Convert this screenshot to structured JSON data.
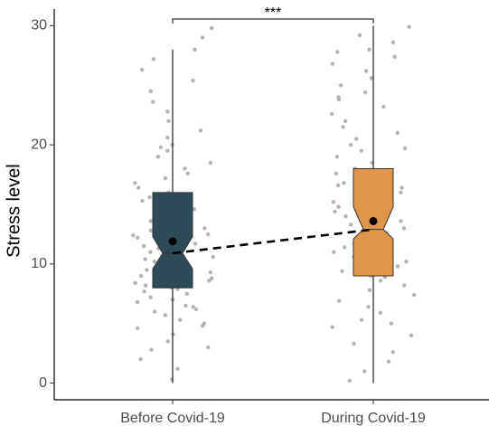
{
  "chart_data": {
    "type": "box",
    "y_label": "Stress level",
    "categories": [
      "Before Covid-19",
      "During Covid-19"
    ],
    "ylim": [
      -1.4,
      31.4
    ],
    "yticks": [
      0,
      10,
      20,
      30
    ],
    "point_color": "#b3b3b3",
    "significance": {
      "label": "***"
    },
    "boxes": [
      {
        "color": "#2f4b58",
        "whisker_low": 0,
        "q1": 8,
        "median": 10.9,
        "q3": 16,
        "whisker_high": 28,
        "notch": [
          9.6,
          12.3
        ],
        "mean": 11.9,
        "points": [
          0.3,
          1.2,
          2.0,
          2.8,
          3.5,
          4.1,
          4.6,
          5.0,
          5.3,
          5.7,
          6.0,
          6.2,
          6.5,
          6.8,
          7.0,
          7.2,
          7.5,
          7.7,
          7.9,
          8.0,
          8.2,
          8.4,
          8.6,
          8.8,
          9.0,
          9.1,
          9.3,
          9.5,
          9.7,
          9.9,
          10.0,
          10.2,
          10.4,
          10.6,
          10.8,
          11.0,
          11.1,
          11.3,
          11.5,
          11.7,
          11.9,
          12.0,
          12.2,
          12.5,
          12.8,
          13.0,
          13.3,
          13.6,
          14.0,
          14.3,
          14.6,
          15.0,
          15.3,
          15.6,
          16.0,
          16.4,
          16.8,
          17.2,
          17.6,
          18.0,
          18.5,
          19.0,
          19.5,
          20.0,
          20.6,
          21.2,
          22.0,
          22.8,
          23.6,
          24.5,
          25.4,
          26.3,
          27.2,
          28.0,
          29.0,
          29.8,
          3.0,
          4.8,
          6.4,
          8.5,
          10.1,
          12.4,
          14.8,
          19.8
        ]
      },
      {
        "color": "#e0964a",
        "whisker_low": 0,
        "q1": 9,
        "median": 12.9,
        "q3": 18,
        "whisker_high": 30,
        "notch": [
          12.1,
          14.8
        ],
        "mean": 13.6,
        "points": [
          0.2,
          1.0,
          1.8,
          2.6,
          3.3,
          4.0,
          4.7,
          5.3,
          5.9,
          6.4,
          6.9,
          7.4,
          7.8,
          8.2,
          8.6,
          9.0,
          9.4,
          9.8,
          10.2,
          10.6,
          11.0,
          11.4,
          11.8,
          12.2,
          12.6,
          13.0,
          13.3,
          13.6,
          14.0,
          14.4,
          14.8,
          15.2,
          15.6,
          16.0,
          16.4,
          16.8,
          17.2,
          17.6,
          18.0,
          18.5,
          19.0,
          19.5,
          20.0,
          20.5,
          21.0,
          21.5,
          22.0,
          22.6,
          23.2,
          23.8,
          24.4,
          25.0,
          25.6,
          26.2,
          26.8,
          27.4,
          28.0,
          28.6,
          29.2,
          29.9,
          5.0,
          8.9,
          11.7,
          13.9,
          16.6,
          19.7,
          24.0,
          27.8
        ]
      }
    ]
  }
}
